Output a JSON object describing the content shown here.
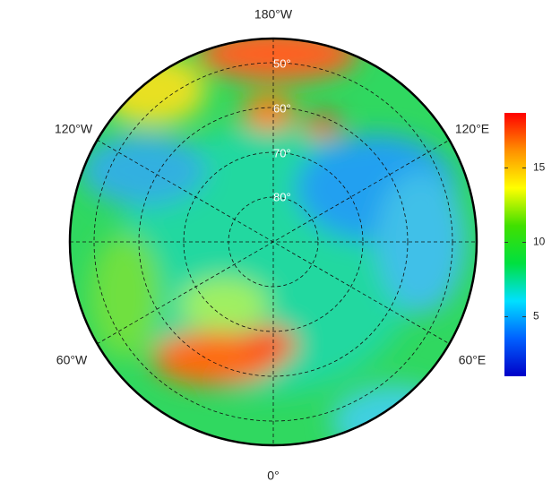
{
  "map": {
    "lon_labels": [
      "180°W",
      "120°W",
      "120°E",
      "60°W",
      "60°E",
      "0°"
    ],
    "lat_labels": [
      "50°",
      "60°",
      "70°",
      "80°"
    ]
  },
  "colorbar": {
    "lim": [
      1,
      18.7
    ],
    "ticks": [
      5,
      10,
      15
    ],
    "colors": [
      "#0000c8",
      "#0060ff",
      "#00e0ff",
      "#00e040",
      "#40e000",
      "#ffff00",
      "#ff9000",
      "#ff0000"
    ]
  }
}
